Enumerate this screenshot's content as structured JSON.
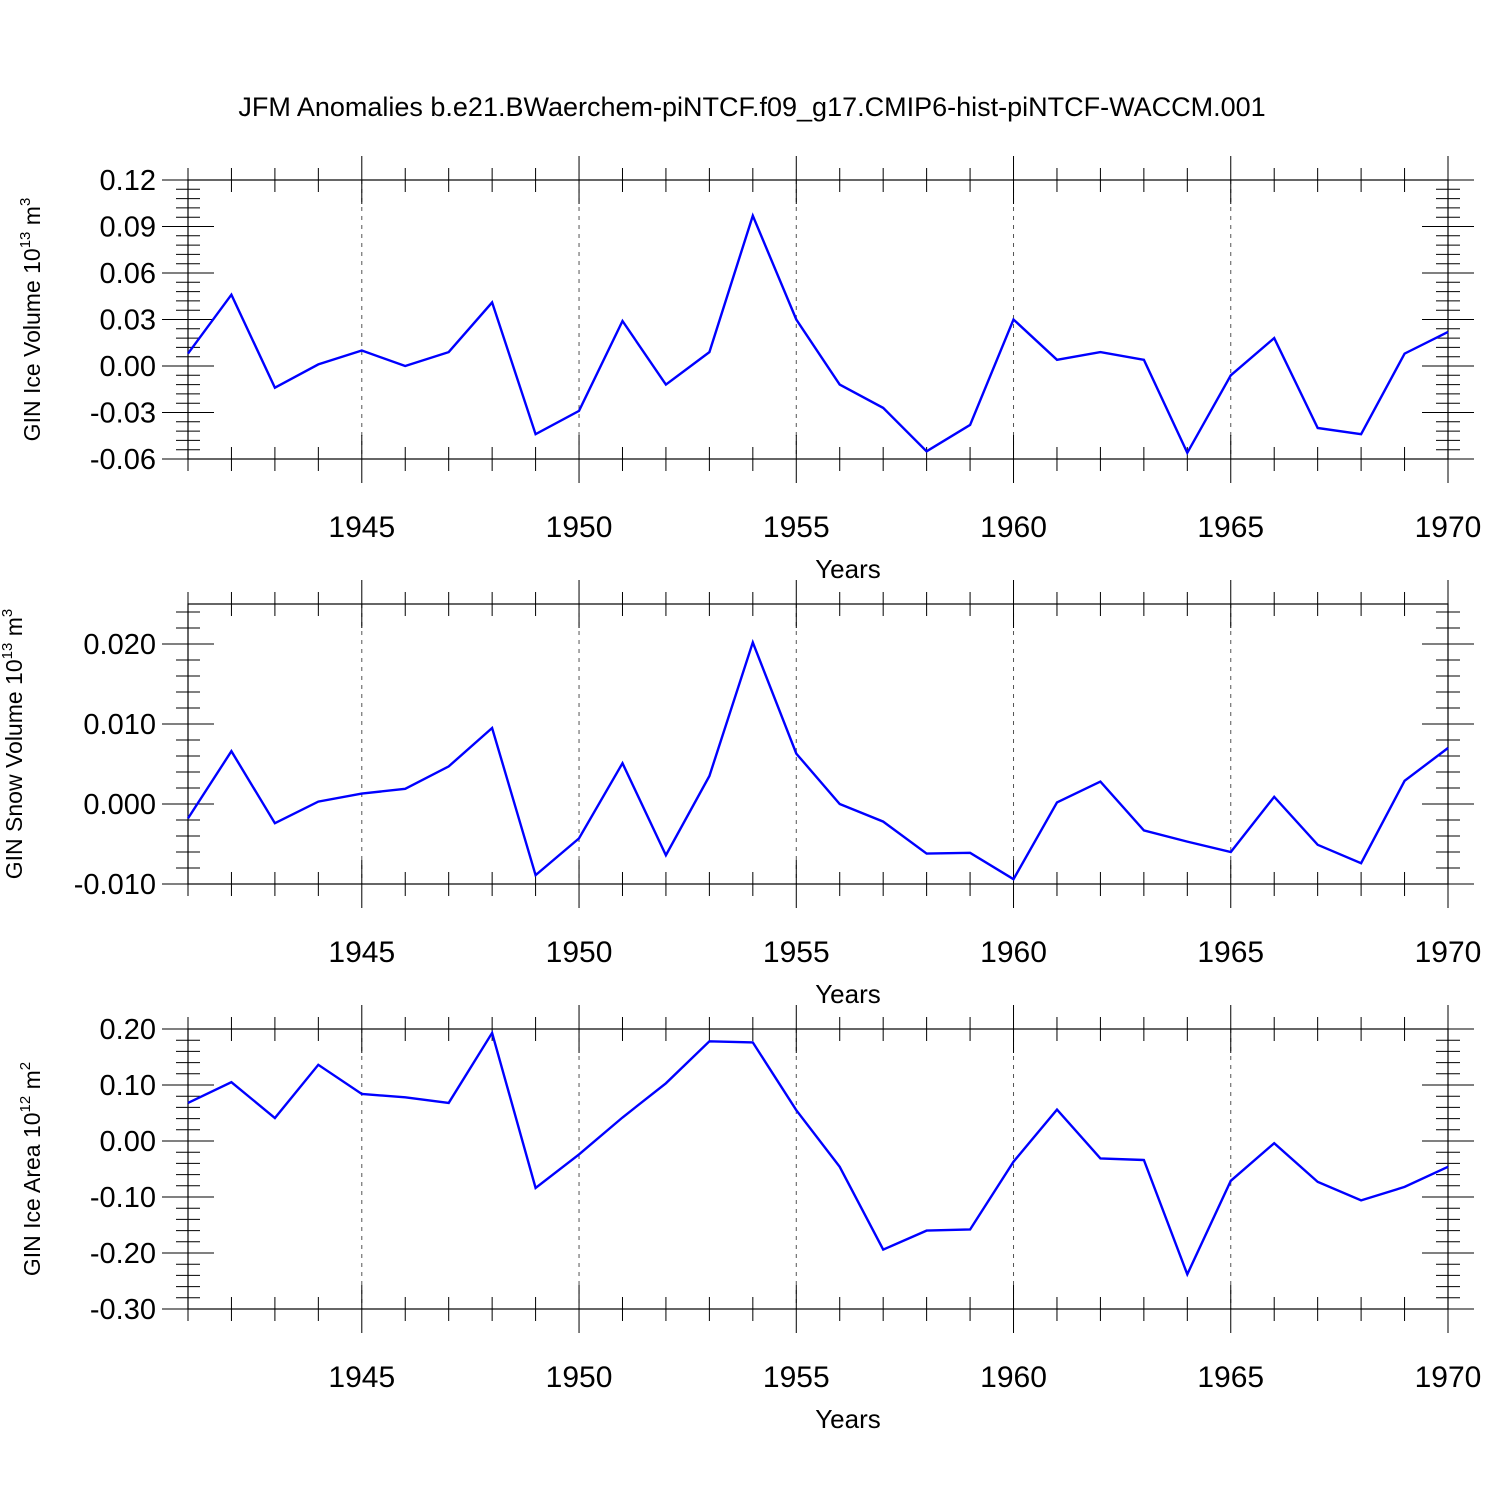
{
  "title": "JFM Anomalies b.e21.BWaerchem-piNTCF.f09_g17.CMIP6-hist-piNTCF-WACCM.001",
  "colors": {
    "series": "#0000ff",
    "axis": "#000000",
    "grid": "#555555"
  },
  "chart_data": [
    {
      "type": "line",
      "ylabel_parts": [
        "GIN Ice Volume 10",
        "13",
        " m",
        "3"
      ],
      "xlabel": "Years",
      "xlim": [
        1941,
        1970
      ],
      "ylim": [
        -0.06,
        0.12
      ],
      "x_ticks": [
        1945,
        1950,
        1955,
        1960,
        1965,
        1970
      ],
      "x_tick_labels": [
        "1945",
        "1950",
        "1955",
        "1960",
        "1965",
        "1970"
      ],
      "y_ticks": [
        -0.06,
        -0.03,
        0.0,
        0.03,
        0.06,
        0.09,
        0.12
      ],
      "y_tick_labels": [
        "-0.06",
        "-0.03",
        "0.00",
        "0.03",
        "0.06",
        "0.09",
        "0.12"
      ],
      "grid": "vertical dashed at major x ticks",
      "x": [
        1941,
        1942,
        1943,
        1944,
        1945,
        1946,
        1947,
        1948,
        1949,
        1950,
        1951,
        1952,
        1953,
        1954,
        1955,
        1956,
        1957,
        1958,
        1959,
        1960,
        1961,
        1962,
        1963,
        1964,
        1965,
        1966,
        1967,
        1968,
        1969,
        1970
      ],
      "series": [
        {
          "name": "GIN Ice Volume",
          "values": [
            0.008,
            0.046,
            -0.014,
            0.001,
            0.01,
            0.0,
            0.009,
            0.041,
            -0.044,
            -0.029,
            0.029,
            -0.012,
            0.009,
            0.097,
            0.03,
            -0.012,
            -0.027,
            -0.055,
            -0.038,
            0.03,
            0.004,
            0.009,
            0.004,
            -0.056,
            -0.006,
            0.018,
            -0.04,
            -0.044,
            0.008,
            0.022
          ]
        }
      ]
    },
    {
      "type": "line",
      "ylabel_parts": [
        "GIN Snow Volume 10",
        "13",
        " m",
        "3"
      ],
      "xlabel": "Years",
      "xlim": [
        1941,
        1970
      ],
      "ylim": [
        -0.01,
        0.025
      ],
      "x_ticks": [
        1945,
        1950,
        1955,
        1960,
        1965,
        1970
      ],
      "x_tick_labels": [
        "1945",
        "1950",
        "1955",
        "1960",
        "1965",
        "1970"
      ],
      "y_ticks": [
        -0.01,
        0.0,
        0.01,
        0.02
      ],
      "y_tick_labels": [
        "-0.010",
        "0.000",
        "0.010",
        "0.020"
      ],
      "grid": "vertical dashed at major x ticks",
      "x": [
        1941,
        1942,
        1943,
        1944,
        1945,
        1946,
        1947,
        1948,
        1949,
        1950,
        1951,
        1952,
        1953,
        1954,
        1955,
        1956,
        1957,
        1958,
        1959,
        1960,
        1961,
        1962,
        1963,
        1964,
        1965,
        1966,
        1967,
        1968,
        1969,
        1970
      ],
      "series": [
        {
          "name": "GIN Snow Volume",
          "values": [
            -0.0018,
            0.0066,
            -0.0024,
            0.0003,
            0.0013,
            0.0019,
            0.0047,
            0.0095,
            -0.0089,
            -0.0043,
            0.0051,
            -0.0064,
            0.0035,
            0.0202,
            0.0063,
            0.0,
            -0.0022,
            -0.0062,
            -0.0061,
            -0.0094,
            0.0002,
            0.0028,
            -0.0033,
            -0.0047,
            -0.006,
            0.0009,
            -0.0051,
            -0.0074,
            0.0029,
            0.007
          ]
        }
      ]
    },
    {
      "type": "line",
      "ylabel_parts": [
        "GIN Ice Area 10",
        "12",
        " m",
        "2"
      ],
      "xlabel": "Years",
      "xlim": [
        1941,
        1970
      ],
      "ylim": [
        -0.3,
        0.2
      ],
      "x_ticks": [
        1945,
        1950,
        1955,
        1960,
        1965,
        1970
      ],
      "x_tick_labels": [
        "1945",
        "1950",
        "1955",
        "1960",
        "1965",
        "1970"
      ],
      "y_ticks": [
        -0.3,
        -0.2,
        -0.1,
        0.0,
        0.1,
        0.2
      ],
      "y_tick_labels": [
        "-0.30",
        "-0.20",
        "-0.10",
        "0.00",
        "0.10",
        "0.20"
      ],
      "grid": "vertical dashed at major x ticks",
      "x": [
        1941,
        1942,
        1943,
        1944,
        1945,
        1946,
        1947,
        1948,
        1949,
        1950,
        1951,
        1952,
        1953,
        1954,
        1955,
        1956,
        1957,
        1958,
        1959,
        1960,
        1961,
        1962,
        1963,
        1964,
        1965,
        1966,
        1967,
        1968,
        1969,
        1970
      ],
      "series": [
        {
          "name": "GIN Ice Area",
          "values": [
            0.068,
            0.105,
            0.041,
            0.136,
            0.084,
            0.078,
            0.068,
            0.193,
            -0.084,
            -0.024,
            0.042,
            0.103,
            0.178,
            0.176,
            0.055,
            -0.046,
            -0.194,
            -0.16,
            -0.158,
            -0.037,
            0.056,
            -0.031,
            -0.034,
            -0.238,
            -0.071,
            -0.004,
            -0.073,
            -0.106,
            -0.082,
            -0.046
          ]
        }
      ]
    }
  ]
}
